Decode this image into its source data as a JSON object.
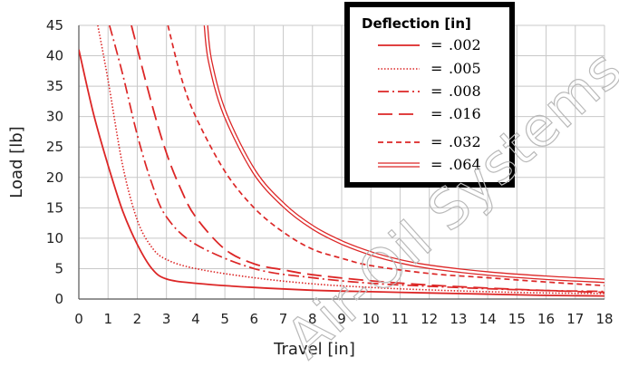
{
  "chart_data": {
    "type": "line",
    "xlabel": "Travel [in]",
    "ylabel": "Load [lb]",
    "xlim": [
      0,
      18
    ],
    "ylim": [
      0,
      45
    ],
    "x_ticks": [
      "0",
      "1",
      "2",
      "3",
      "4",
      "5",
      "6",
      "7",
      "8",
      "9",
      "10",
      "11",
      "12",
      "13",
      "14",
      "15",
      "16",
      "17",
      "18"
    ],
    "y_ticks": [
      "0",
      "5",
      "10",
      "15",
      "20",
      "25",
      "30",
      "35",
      "40",
      "45"
    ],
    "grid": true,
    "legend": {
      "title": "Deflection [in]",
      "placement": "top-right",
      "equals_sign": "="
    },
    "series": [
      {
        "name": ".002",
        "style": "solid",
        "points": [
          [
            0,
            41
          ],
          [
            0.5,
            30.5
          ],
          [
            1,
            22
          ],
          [
            1.5,
            14.5
          ],
          [
            2,
            9
          ],
          [
            2.5,
            5
          ],
          [
            3,
            3.3
          ],
          [
            4,
            2.6
          ],
          [
            6,
            1.9
          ],
          [
            8,
            1.45
          ],
          [
            10,
            1.2
          ],
          [
            12,
            1
          ],
          [
            14,
            0.8
          ],
          [
            16,
            0.6
          ],
          [
            18,
            0.5
          ]
        ]
      },
      {
        "name": ".005",
        "style": "dotted",
        "points": [
          [
            0.65,
            45
          ],
          [
            1,
            36
          ],
          [
            1.5,
            22
          ],
          [
            2,
            13
          ],
          [
            2.5,
            8.5
          ],
          [
            3,
            6.5
          ],
          [
            4,
            5
          ],
          [
            6,
            3.5
          ],
          [
            8,
            2.5
          ],
          [
            10,
            1.9
          ],
          [
            12,
            1.5
          ],
          [
            14,
            1.2
          ],
          [
            16,
            1
          ],
          [
            18,
            0.9
          ]
        ]
      },
      {
        "name": ".008",
        "style": "dashdot",
        "points": [
          [
            1.05,
            45
          ],
          [
            1.5,
            37
          ],
          [
            2,
            27
          ],
          [
            2.5,
            19
          ],
          [
            3,
            13.5
          ],
          [
            4,
            9
          ],
          [
            6,
            5
          ],
          [
            8,
            3.5
          ],
          [
            10,
            2.6
          ],
          [
            12,
            2.1
          ],
          [
            14,
            1.7
          ],
          [
            16,
            1.4
          ],
          [
            18,
            1.25
          ]
        ]
      },
      {
        "name": ".016",
        "style": "longdash",
        "points": [
          [
            1.8,
            45
          ],
          [
            2.5,
            32
          ],
          [
            3,
            24
          ],
          [
            3.5,
            18
          ],
          [
            4,
            13.5
          ],
          [
            5,
            8.2
          ],
          [
            6,
            5.8
          ],
          [
            7,
            4.8
          ],
          [
            8,
            4
          ],
          [
            10,
            3
          ],
          [
            12,
            2.3
          ],
          [
            14,
            1.8
          ],
          [
            16,
            1.4
          ],
          [
            18,
            1.1
          ]
        ]
      },
      {
        "name": ".032",
        "style": "shortdash",
        "points": [
          [
            3.05,
            45
          ],
          [
            3.5,
            36.5
          ],
          [
            4,
            30
          ],
          [
            5,
            21
          ],
          [
            6,
            15
          ],
          [
            7,
            11
          ],
          [
            8,
            8.2
          ],
          [
            9,
            6.7
          ],
          [
            10,
            5.5
          ],
          [
            12,
            4.2
          ],
          [
            14,
            3.5
          ],
          [
            16,
            2.8
          ],
          [
            18,
            2.2
          ]
        ]
      },
      {
        "name": ".064",
        "style": "double",
        "points": [
          [
            4.35,
            45
          ],
          [
            4.5,
            39
          ],
          [
            5,
            30.5
          ],
          [
            6,
            21
          ],
          [
            7,
            15.5
          ],
          [
            8,
            11.8
          ],
          [
            9,
            9.3
          ],
          [
            10,
            7.5
          ],
          [
            11,
            6.2
          ],
          [
            12,
            5.3
          ],
          [
            14,
            4.2
          ],
          [
            16,
            3.5
          ],
          [
            18,
            3
          ]
        ]
      }
    ]
  },
  "colors": {
    "line": "#dc2626",
    "grid": "#c8c8c8",
    "axis": "#555555",
    "legend_border": "#000000"
  },
  "watermark": {
    "text": "Air-Oil Systems, Inc"
  }
}
